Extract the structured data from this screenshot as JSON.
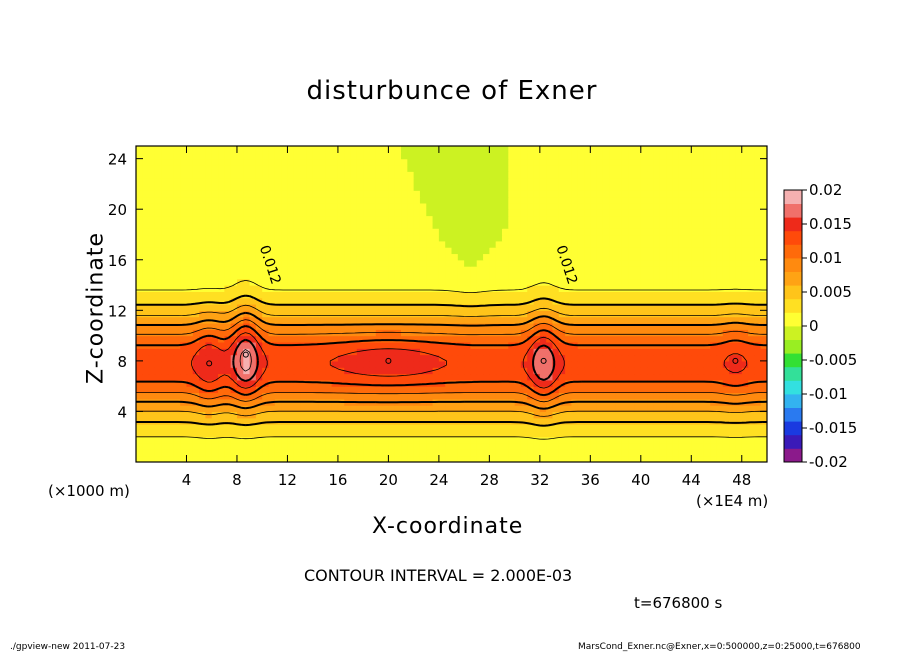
{
  "chart_data": {
    "type": "heatmap",
    "title": "disturbunce of Exner",
    "xlabel": "X-coordinate",
    "ylabel": "Z-coordinate",
    "x_unit_left": "(×1000 m)",
    "x_unit_right": "(×1E4 m)",
    "xlim": [
      0,
      50
    ],
    "ylim": [
      0,
      25
    ],
    "xticks": [
      4,
      8,
      12,
      16,
      20,
      24,
      28,
      32,
      36,
      40,
      44,
      48
    ],
    "yticks": [
      4,
      8,
      12,
      16,
      20,
      24
    ],
    "colorbar": {
      "range": [
        -0.02,
        0.02
      ],
      "tick_labels": [
        "0.02",
        "0.015",
        "0.01",
        "0.005",
        "0",
        "-0.005",
        "-0.01",
        "-0.015",
        "-0.02"
      ],
      "colors": [
        "#8b1a8b",
        "#3a1ab8",
        "#1a3ae0",
        "#2a7af0",
        "#33b3f0",
        "#33e0e0",
        "#33e099",
        "#33e033",
        "#99ee22",
        "#ccf222",
        "#ffff33",
        "#ffe022",
        "#ffc41a",
        "#ffa314",
        "#ff8a0f",
        "#ff6a0a",
        "#ff4a0a",
        "#ee2a1a",
        "#f0706a",
        "#f5b0b0"
      ]
    },
    "contour_labels": [
      "0.012",
      "0.012"
    ],
    "peaks": [
      {
        "x": 5.8,
        "z": 7.8,
        "value": 0.016
      },
      {
        "x": 8.7,
        "z": 8.5,
        "value": 0.019
      },
      {
        "x": 20.0,
        "z": 8.0,
        "value": 0.0155
      },
      {
        "x": 32.3,
        "z": 8.0,
        "value": 0.018
      },
      {
        "x": 47.5,
        "z": 8.0,
        "value": 0.0145
      }
    ],
    "contour_interval": "CONTOUR INTERVAL = 2.000E-03",
    "time_label": "t=676800 s"
  },
  "footer": {
    "left": "./gpview-new  2011-07-23",
    "right": "MarsCond_Exner.nc@Exner,x=0:500000,z=0:25000,t=676800"
  }
}
